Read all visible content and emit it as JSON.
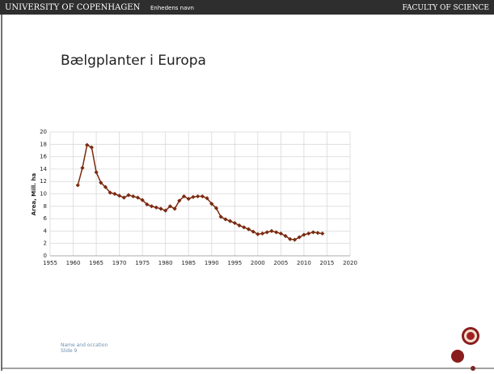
{
  "header": {
    "left": "UNIVERSITY OF COPENHAGEN",
    "unit": "Enhedens navn",
    "right": "FACULTY OF SCIENCE"
  },
  "footer": {
    "line1": "Name and occation",
    "line2": "Slide 9"
  },
  "chart_data": {
    "type": "line",
    "title": "Bælgplanter i Europa",
    "ylabel": "Area, Mill. ha",
    "x": [
      1961,
      1962,
      1963,
      1964,
      1965,
      1966,
      1967,
      1968,
      1969,
      1970,
      1971,
      1972,
      1973,
      1974,
      1975,
      1976,
      1977,
      1978,
      1979,
      1980,
      1981,
      1982,
      1983,
      1984,
      1985,
      1986,
      1987,
      1988,
      1989,
      1990,
      1991,
      1992,
      1993,
      1994,
      1995,
      1996,
      1997,
      1998,
      1999,
      2000,
      2001,
      2002,
      2003,
      2004,
      2005,
      2006,
      2007,
      2008,
      2009,
      2010,
      2011,
      2012,
      2013,
      2014
    ],
    "series": [
      {
        "color": "#7b2a10",
        "values": [
          11.4,
          14.2,
          17.9,
          17.5,
          13.5,
          11.8,
          11.1,
          10.2,
          10.0,
          9.7,
          9.4,
          9.8,
          9.6,
          9.4,
          9.0,
          8.3,
          8.0,
          7.8,
          7.6,
          7.3,
          8.0,
          7.6,
          8.9,
          9.6,
          9.2,
          9.5,
          9.6,
          9.6,
          9.3,
          8.4,
          7.7,
          6.3,
          5.9,
          5.6,
          5.3,
          4.9,
          4.6,
          4.3,
          3.9,
          3.5,
          3.6,
          3.8,
          4.0,
          3.8,
          3.6,
          3.2,
          2.7,
          2.6,
          3.0,
          3.4,
          3.6,
          3.8,
          3.7,
          3.6
        ]
      }
    ],
    "xlim": [
      1955,
      2020
    ],
    "xticks": [
      1955,
      1960,
      1965,
      1970,
      1975,
      1980,
      1985,
      1990,
      1995,
      2000,
      2005,
      2010,
      2015,
      2020
    ],
    "ylim": [
      0,
      20
    ],
    "yticks": [
      0,
      2,
      4,
      6,
      8,
      10,
      12,
      14,
      16,
      18,
      20
    ],
    "grid": true,
    "marker": "diamond"
  }
}
